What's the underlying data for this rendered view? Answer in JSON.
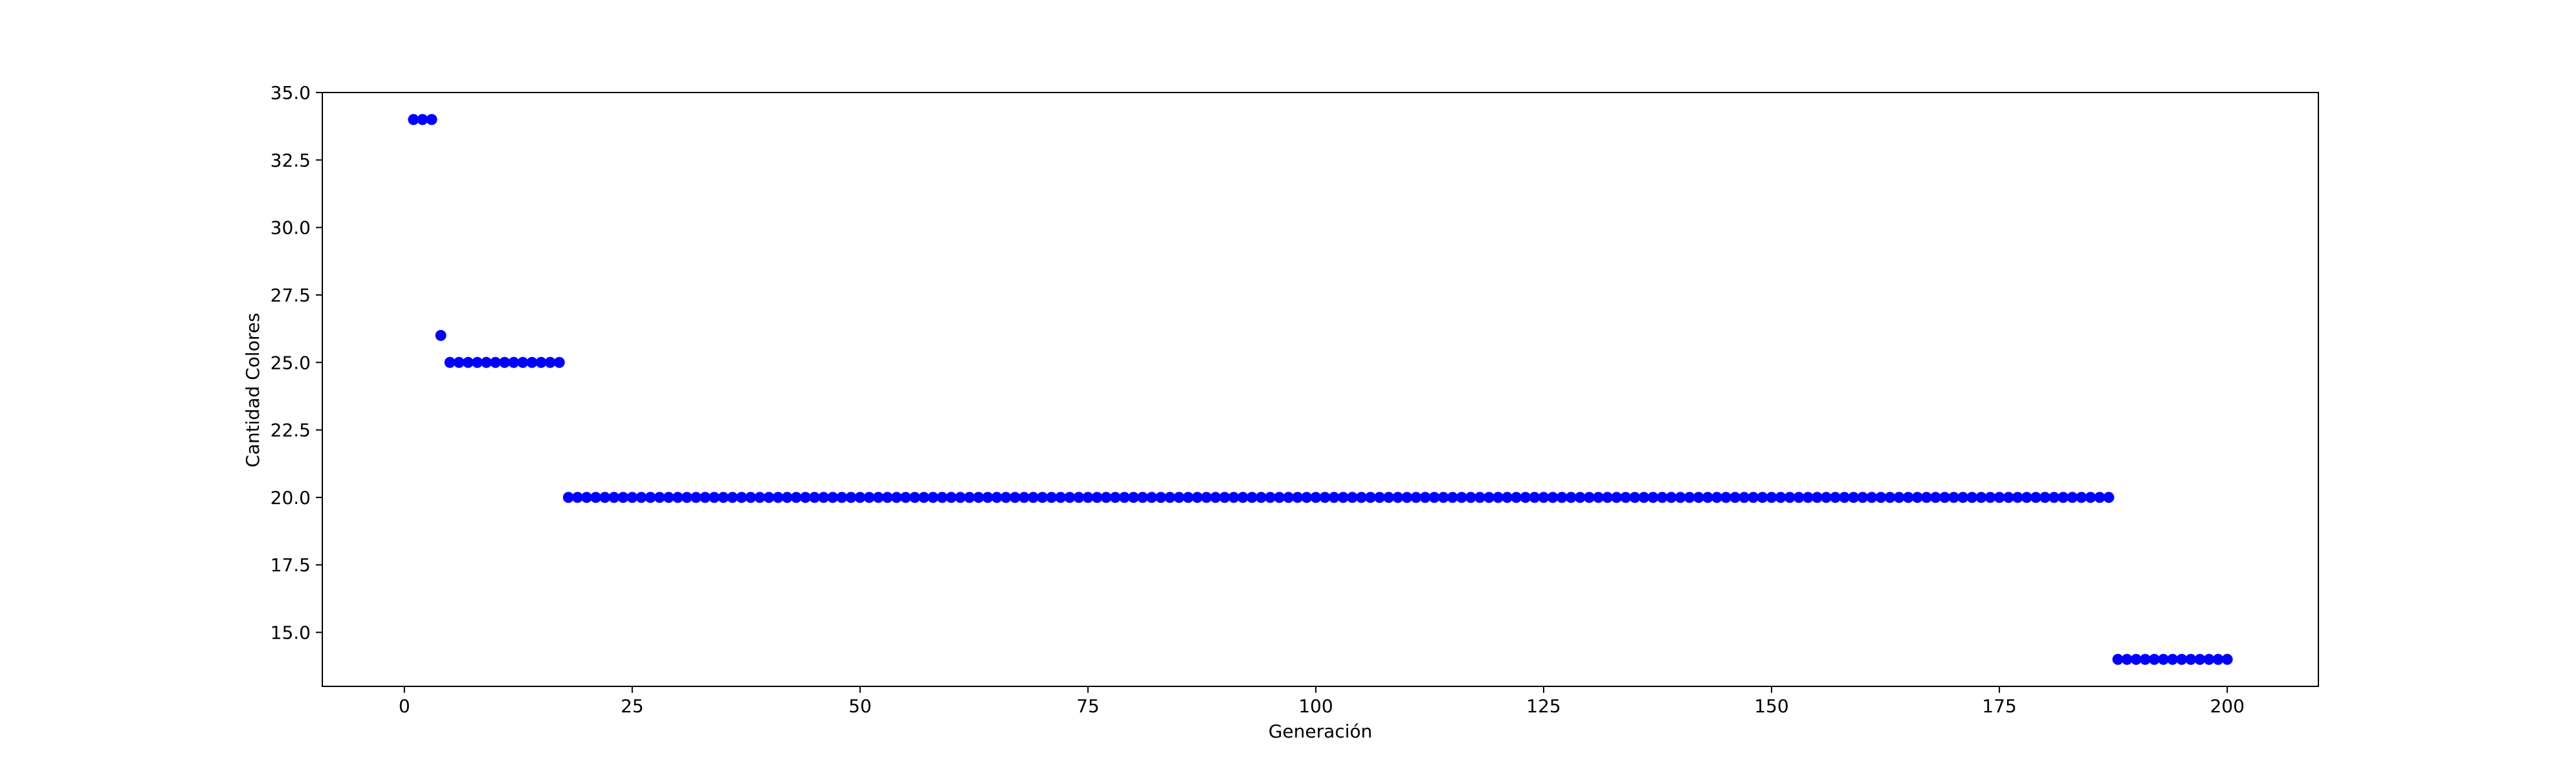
{
  "chart_data": {
    "type": "scatter",
    "title": "",
    "xlabel": "Generación",
    "ylabel": "Cantidad Colores",
    "xlim": [
      -9,
      210
    ],
    "ylim": [
      13.0,
      35.0
    ],
    "x_ticks": [
      0,
      25,
      50,
      75,
      100,
      125,
      150,
      175,
      200
    ],
    "x_tick_labels": [
      "0",
      "25",
      "50",
      "75",
      "100",
      "125",
      "150",
      "175",
      "200"
    ],
    "y_ticks": [
      15.0,
      17.5,
      20.0,
      22.5,
      25.0,
      27.5,
      30.0,
      32.5,
      35.0
    ],
    "y_tick_labels": [
      "15.0",
      "17.5",
      "20.0",
      "22.5",
      "25.0",
      "27.5",
      "30.0",
      "32.5",
      "35.0"
    ],
    "grid": false,
    "legend": "none",
    "marker_color": "#0000ff",
    "segments": [
      {
        "x_start": 1,
        "x_end": 3,
        "y": 34
      },
      {
        "x_start": 4,
        "x_end": 4,
        "y": 26
      },
      {
        "x_start": 5,
        "x_end": 17,
        "y": 25
      },
      {
        "x_start": 18,
        "x_end": 187,
        "y": 20
      },
      {
        "x_start": 188,
        "x_end": 200,
        "y": 14
      }
    ]
  }
}
